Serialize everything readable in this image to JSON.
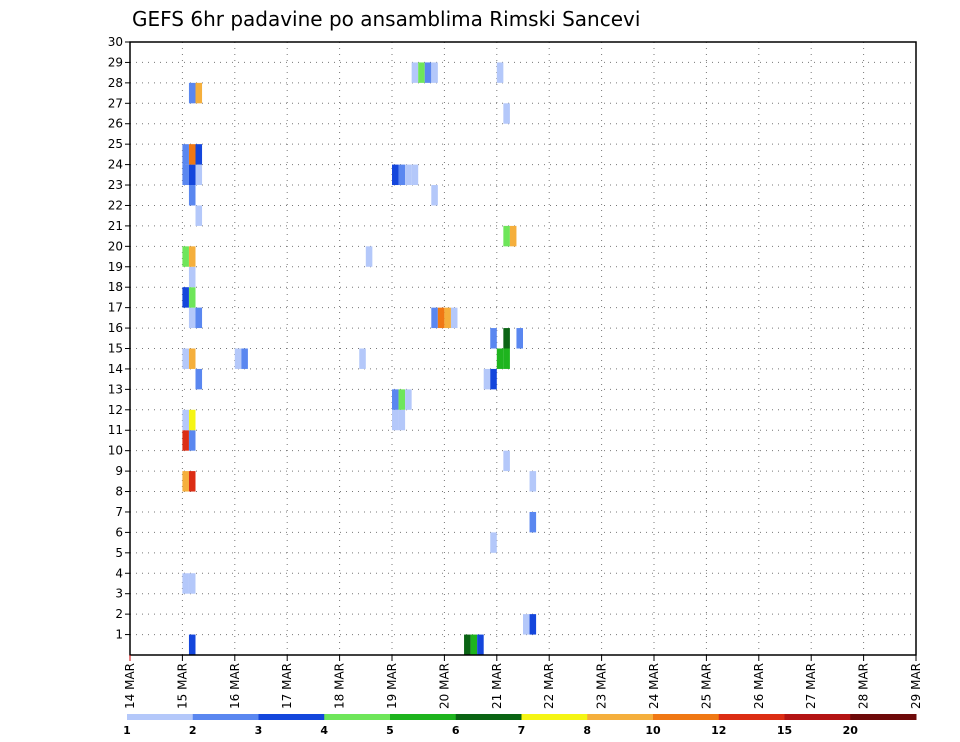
{
  "chart_data": {
    "type": "heatmap",
    "title": "GEFS 6hr padavine po ansamblima Rimski Sancevi",
    "xlabel": "",
    "ylabel": "",
    "x_ticks": [
      "14 MAR",
      "15 MAR",
      "16 MAR",
      "17 MAR",
      "18 MAR",
      "19 MAR",
      "20 MAR",
      "21 MAR",
      "22 MAR",
      "23 MAR",
      "24 MAR",
      "25 MAR",
      "26 MAR",
      "27 MAR",
      "28 MAR",
      "29 MAR"
    ],
    "x_range": [
      0,
      60
    ],
    "y_ticks": [
      1,
      2,
      3,
      4,
      5,
      6,
      7,
      8,
      9,
      10,
      11,
      12,
      13,
      14,
      15,
      16,
      17,
      18,
      19,
      20,
      21,
      22,
      23,
      24,
      25,
      26,
      27,
      28,
      29,
      30
    ],
    "y_range": [
      0,
      30
    ],
    "grid": true,
    "legend": {
      "placement": "bottom",
      "labels": [
        "1",
        "2",
        "3",
        "4",
        "5",
        "6",
        "7",
        "8",
        "10",
        "12",
        "15",
        "20"
      ],
      "colors": [
        "#b4c8fa",
        "#5a87f0",
        "#1446dc",
        "#6ee65a",
        "#1eb41e",
        "#0a6414",
        "#f5f514",
        "#f5af3c",
        "#f07814",
        "#dc2d14",
        "#b41414",
        "#6e0a0a"
      ]
    },
    "cells": [
      [
        4.5,
        0,
        2
      ],
      [
        25.5,
        0,
        5
      ],
      [
        26,
        0,
        4
      ],
      [
        26.5,
        0,
        2
      ],
      [
        30,
        1,
        0
      ],
      [
        30.5,
        1,
        2
      ],
      [
        4,
        3,
        0
      ],
      [
        4.5,
        3,
        0
      ],
      [
        27.5,
        5,
        0
      ],
      [
        30.5,
        6,
        1
      ],
      [
        30.5,
        8,
        0
      ],
      [
        4,
        8,
        7
      ],
      [
        4.5,
        8,
        9
      ],
      [
        28.5,
        9,
        0
      ],
      [
        4,
        10,
        9
      ],
      [
        4.5,
        10,
        1
      ],
      [
        4,
        11,
        0
      ],
      [
        4.5,
        11,
        6
      ],
      [
        20,
        11,
        0
      ],
      [
        20.5,
        11,
        0
      ],
      [
        20,
        12,
        1
      ],
      [
        20.5,
        12,
        3
      ],
      [
        21,
        12,
        0
      ],
      [
        5,
        13,
        1
      ],
      [
        27,
        13,
        0
      ],
      [
        27.5,
        13,
        2
      ],
      [
        4,
        14,
        0
      ],
      [
        4.5,
        14,
        7
      ],
      [
        8,
        14,
        0
      ],
      [
        8.5,
        14,
        1
      ],
      [
        17.5,
        14,
        0
      ],
      [
        28,
        14,
        4
      ],
      [
        28.5,
        14,
        4
      ],
      [
        27.5,
        15,
        1
      ],
      [
        28.5,
        15,
        5
      ],
      [
        29.5,
        15,
        1
      ],
      [
        4.5,
        16,
        0
      ],
      [
        5,
        16,
        1
      ],
      [
        23,
        16,
        1
      ],
      [
        23.5,
        16,
        8
      ],
      [
        24,
        16,
        7
      ],
      [
        24.5,
        16,
        0
      ],
      [
        4,
        17,
        2
      ],
      [
        4.5,
        17,
        3
      ],
      [
        4.5,
        18,
        0
      ],
      [
        18,
        19,
        0
      ],
      [
        4,
        19,
        3
      ],
      [
        4.5,
        19,
        7
      ],
      [
        28.5,
        20,
        3
      ],
      [
        29,
        20,
        7
      ],
      [
        5,
        21,
        0
      ],
      [
        4.5,
        22,
        1
      ],
      [
        23,
        22,
        0
      ],
      [
        4,
        23,
        1
      ],
      [
        4.5,
        23,
        2
      ],
      [
        5,
        23,
        0
      ],
      [
        20,
        23,
        2
      ],
      [
        20.5,
        23,
        1
      ],
      [
        21,
        23,
        0
      ],
      [
        21.5,
        23,
        0
      ],
      [
        4,
        24,
        1
      ],
      [
        4.5,
        24,
        8
      ],
      [
        5,
        24,
        2
      ],
      [
        28.5,
        26,
        0
      ],
      [
        4.5,
        27,
        1
      ],
      [
        5,
        27,
        7
      ],
      [
        21.5,
        28,
        0
      ],
      [
        22,
        28,
        3
      ],
      [
        22.5,
        28,
        1
      ],
      [
        23,
        28,
        0
      ],
      [
        28,
        28,
        0
      ]
    ]
  }
}
